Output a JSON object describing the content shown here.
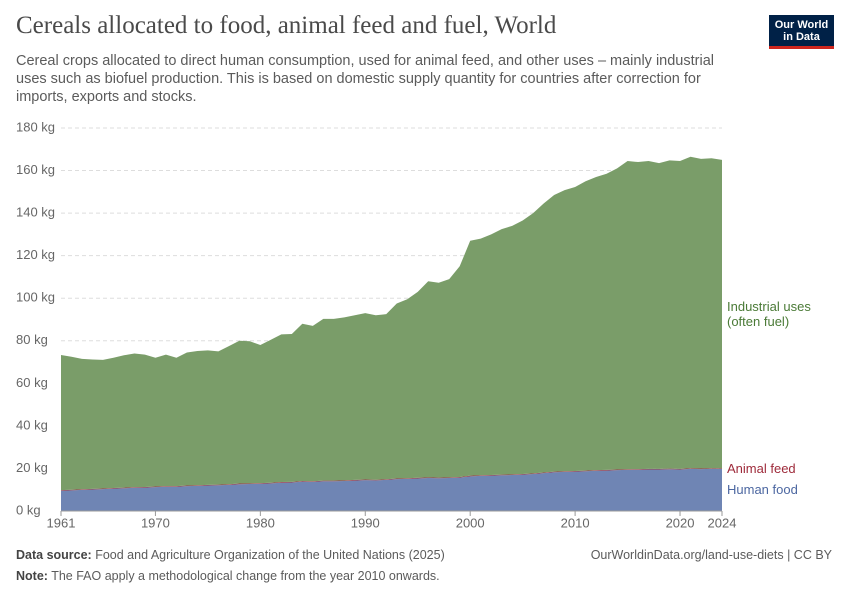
{
  "chart_data": {
    "type": "stacked-area",
    "title": "Cereals allocated to food, animal feed and fuel, World",
    "subtitle": "Cereal crops allocated to direct human consumption, used for animal feed, and other uses – mainly industrial uses such as biofuel production. This is based on domestic supply quantity for countries after correction for imports, exports and stocks.",
    "logo": [
      "Our World",
      "in Data"
    ],
    "source_label": "Data source:",
    "source": "Food and Agriculture Organization of the United Nations (2025)",
    "url": "OurWorldinData.org/land-use-diets | CC BY",
    "note_label": "Note:",
    "note": "The FAO apply a methodological change from the year 2010 onwards.",
    "x": [
      1961,
      1962,
      1963,
      1964,
      1965,
      1966,
      1967,
      1968,
      1969,
      1970,
      1971,
      1972,
      1973,
      1974,
      1975,
      1976,
      1977,
      1978,
      1979,
      1980,
      1981,
      1982,
      1983,
      1984,
      1985,
      1986,
      1987,
      1988,
      1989,
      1990,
      1991,
      1992,
      1993,
      1994,
      1995,
      1996,
      1997,
      1998,
      1999,
      2000,
      2001,
      2002,
      2003,
      2004,
      2005,
      2006,
      2007,
      2008,
      2009,
      2010,
      2011,
      2012,
      2013,
      2014,
      2015,
      2016,
      2017,
      2018,
      2019,
      2020,
      2021,
      2022,
      2023,
      2024
    ],
    "xlim": [
      1961,
      2024
    ],
    "xticks": [
      1961,
      1970,
      1980,
      1990,
      2000,
      2010,
      2020,
      2024
    ],
    "ylim": [
      0,
      180
    ],
    "yticks": [
      {
        "value": 0,
        "label": "0 kg"
      },
      {
        "value": 20,
        "label": "20 kg"
      },
      {
        "value": 40,
        "label": "40 kg"
      },
      {
        "value": 60,
        "label": "60 kg"
      },
      {
        "value": 80,
        "label": "80 kg"
      },
      {
        "value": 100,
        "label": "100 kg"
      },
      {
        "value": 120,
        "label": "120 kg"
      },
      {
        "value": 140,
        "label": "140 kg"
      },
      {
        "value": 160,
        "label": "160 kg"
      },
      {
        "value": 180,
        "label": "180 kg"
      }
    ],
    "grid": true,
    "series": [
      {
        "name": "Human food",
        "color": "#6f85b4",
        "label_color": "#4c67a1",
        "values": [
          9.5,
          9.7,
          9.9,
          10.1,
          10.3,
          10.5,
          10.7,
          10.9,
          11.0,
          11.2,
          11.4,
          11.4,
          11.7,
          11.8,
          12.0,
          12.1,
          12.3,
          12.6,
          12.7,
          12.8,
          13.0,
          13.3,
          13.4,
          13.8,
          13.7,
          14.0,
          14.0,
          14.1,
          14.3,
          14.5,
          14.4,
          14.6,
          15.0,
          15.1,
          15.3,
          15.5,
          15.4,
          15.5,
          15.7,
          16.3,
          16.5,
          16.6,
          16.8,
          16.9,
          17.1,
          17.4,
          17.8,
          18.2,
          18.4,
          18.5,
          18.7,
          18.9,
          19.0,
          19.2,
          19.3,
          19.4,
          19.5,
          19.5,
          19.6,
          19.5,
          19.8,
          19.7,
          19.8,
          19.8
        ]
      },
      {
        "name": "Animal feed",
        "color": "#9a3b48",
        "label_color": "#9e2a3a",
        "values": [
          0.3,
          0.3,
          0.3,
          0.3,
          0.3,
          0.3,
          0.3,
          0.3,
          0.3,
          0.3,
          0.3,
          0.3,
          0.3,
          0.3,
          0.3,
          0.3,
          0.3,
          0.3,
          0.3,
          0.3,
          0.3,
          0.3,
          0.3,
          0.3,
          0.3,
          0.3,
          0.3,
          0.3,
          0.3,
          0.3,
          0.3,
          0.3,
          0.3,
          0.3,
          0.3,
          0.3,
          0.3,
          0.3,
          0.3,
          0.3,
          0.3,
          0.3,
          0.3,
          0.3,
          0.3,
          0.3,
          0.3,
          0.3,
          0.3,
          0.3,
          0.3,
          0.3,
          0.3,
          0.3,
          0.3,
          0.3,
          0.3,
          0.3,
          0.3,
          0.3,
          0.3,
          0.3,
          0.3,
          0.3
        ]
      },
      {
        "name": "Industrial uses (often fuel)",
        "color": "#7a9d69",
        "label_color": "#4a7a36",
        "values": [
          63.5,
          62.5,
          61.3,
          60.8,
          60.4,
          61.2,
          62.2,
          62.8,
          62.2,
          60.5,
          61.8,
          60.3,
          62.5,
          63.1,
          63.2,
          62.6,
          64.9,
          67.1,
          66.8,
          64.9,
          67.2,
          69.4,
          69.5,
          73.9,
          73.0,
          76.0,
          76.0,
          76.6,
          77.4,
          78.2,
          77.3,
          77.6,
          82.2,
          84.1,
          87.4,
          92.2,
          91.6,
          93.2,
          99.0,
          110.4,
          111.2,
          113.1,
          115.4,
          116.8,
          119.1,
          122.3,
          126.4,
          130.0,
          132.1,
          133.5,
          136.0,
          137.8,
          139.2,
          141.5,
          144.9,
          144.3,
          144.7,
          143.7,
          144.9,
          144.7,
          146.4,
          145.5,
          145.7,
          144.9
        ]
      }
    ]
  }
}
